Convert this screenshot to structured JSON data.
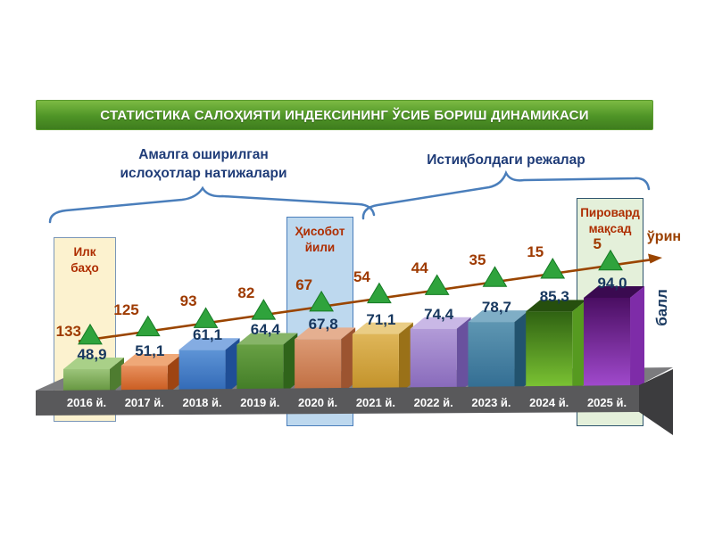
{
  "title": "СТАТИСТИКА САЛОҲИЯТИ ИНДЕКСИНИНГ ЎСИБ БОРИШ ДИНАМИКАСИ",
  "groups": {
    "left": {
      "lines": [
        "Амалга оширилган",
        "ислоҳотлар натижалари"
      ]
    },
    "right": {
      "lines": [
        "Истиқболдаги режалар"
      ]
    }
  },
  "annotations": {
    "first_estimate": {
      "lines": [
        "Илк",
        "баҳо"
      ]
    },
    "report_year": {
      "lines": [
        "Ҳисобот",
        "йили"
      ]
    },
    "final_goal": {
      "lines": [
        "Пировард",
        "мақсад"
      ]
    },
    "rank_axis": "ўрин",
    "score_axis": "балл"
  },
  "chart_data": {
    "type": "bar",
    "title": "СТАТИСТИКА САЛОҲИЯТИ ИНДЕКСИНИНГ ЎСИБ БОРИШ ДИНАМИКАСИ",
    "categories": [
      "2016 й.",
      "2017 й.",
      "2018 й.",
      "2019 й.",
      "2020 й.",
      "2021 й.",
      "2022 й.",
      "2023 й.",
      "2024 й.",
      "2025 й."
    ],
    "series": [
      {
        "name": "балл",
        "type": "bar",
        "values": [
          48.9,
          51.1,
          61.1,
          64.4,
          67.8,
          71.1,
          74.4,
          78.7,
          85.3,
          94.0
        ],
        "labels": [
          "48,9",
          "51,1",
          "61,1",
          "64,4",
          "67,8",
          "71,1",
          "74,4",
          "78,7",
          "85,3",
          "94,0"
        ]
      },
      {
        "name": "ўрин",
        "type": "line",
        "values": [
          133,
          125,
          93,
          82,
          67,
          54,
          44,
          35,
          15,
          5
        ],
        "labels": [
          "133",
          "125",
          "93",
          "82",
          "67",
          "54",
          "44",
          "35",
          "15",
          "5"
        ]
      }
    ],
    "legend": "none",
    "grid": false,
    "colors": {
      "bars": [
        {
          "front_top": "#9cc47a",
          "front_bottom": "#5e9038",
          "top": "#a9d088",
          "side": "#4e7c30"
        },
        {
          "front_top": "#e8915e",
          "front_bottom": "#c65518",
          "top": "#efa878",
          "side": "#9e4412"
        },
        {
          "front_top": "#5e94d6",
          "front_bottom": "#2e66b4",
          "top": "#84ace2",
          "side": "#1f4e96"
        },
        {
          "front_top": "#68a044",
          "front_bottom": "#3f7a24",
          "top": "#86b468",
          "side": "#2f641a"
        },
        {
          "front_top": "#dc9a74",
          "front_bottom": "#be6b3e",
          "top": "#e5af90",
          "side": "#9c5430"
        },
        {
          "front_top": "#dfb659",
          "front_bottom": "#c08f26",
          "top": "#eacd85",
          "side": "#9a7118"
        },
        {
          "front_top": "#b29bd8",
          "front_bottom": "#8465b8",
          "top": "#c9b8e6",
          "side": "#69519e"
        },
        {
          "front_top": "#5e96b2",
          "front_bottom": "#2f6a90",
          "top": "#7faec6",
          "side": "#22536e"
        },
        {
          "front_top": "#2f6212",
          "front_bottom": "#82cc36",
          "top": "#264f0e",
          "side": "#569a20"
        },
        {
          "front_top": "#4a0e62",
          "front_bottom": "#a84fd6",
          "top": "#3a0a50",
          "side": "#7e2ca8"
        }
      ],
      "trend_line": "#9a4500",
      "marker": "#2fa33c",
      "marker_edge": "#157a24",
      "score_text": "#17375e",
      "rank_text": "#9e3a00",
      "callout_text": "#ae2d00",
      "bracket_blue": "#4a7ebb",
      "banner_green": "#4e9426",
      "platform_front": "#59595b",
      "platform_top": "#7b7b7e",
      "platform_side": "#3c3c3e"
    }
  }
}
